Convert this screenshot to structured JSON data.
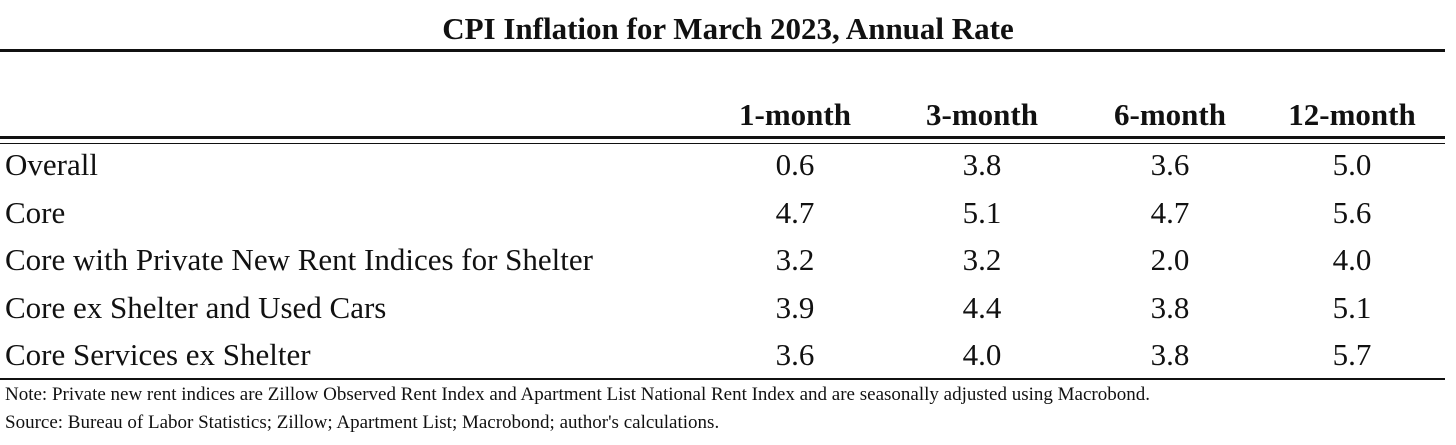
{
  "chart_data": {
    "type": "table",
    "title": "CPI Inflation for March 2023, Annual Rate",
    "columns": [
      "1-month",
      "3-month",
      "6-month",
      "12-month"
    ],
    "rows": [
      {
        "label": "Overall",
        "values": [
          "0.6",
          "3.8",
          "3.6",
          "5.0"
        ]
      },
      {
        "label": "Core",
        "values": [
          "4.7",
          "5.1",
          "4.7",
          "5.6"
        ]
      },
      {
        "label": "Core with Private New Rent Indices for Shelter",
        "values": [
          "3.2",
          "3.2",
          "2.0",
          "4.0"
        ]
      },
      {
        "label": "Core ex Shelter and Used Cars",
        "values": [
          "3.9",
          "4.4",
          "3.8",
          "5.1"
        ]
      },
      {
        "label": "Core Services ex Shelter",
        "values": [
          "3.6",
          "4.0",
          "3.8",
          "5.7"
        ]
      }
    ],
    "note": "Note: Private new rent indices are Zillow Observed Rent Index and Apartment List National Rent Index and are seasonally adjusted using Macrobond.",
    "source": "Source: Bureau of Labor Statistics; Zillow; Apartment List; Macrobond; author's calculations."
  }
}
